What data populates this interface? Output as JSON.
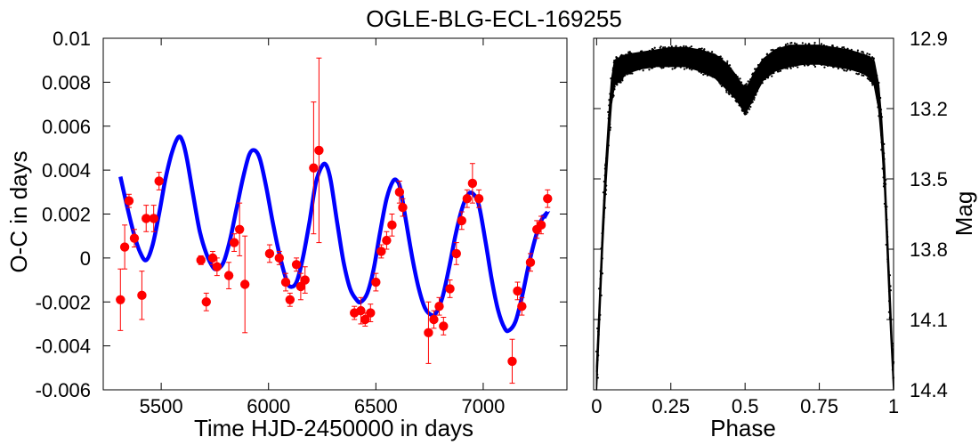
{
  "figure_title": "OGLE-BLG-ECL-169255",
  "chart_data": [
    {
      "type": "scatter",
      "title": "OGLE-BLG-ECL-169255",
      "xlabel": "Time HJD-2450000 in days",
      "ylabel": "O-C in days",
      "xlim": [
        5230,
        7390
      ],
      "ylim": [
        -0.006,
        0.01
      ],
      "xticks": [
        5500,
        6000,
        6500,
        7000
      ],
      "yticks": [
        -0.006,
        -0.004,
        -0.002,
        0,
        0.002,
        0.004,
        0.006,
        0.008,
        0.01
      ],
      "ytick_labels": [
        "-0.006",
        "-0.004",
        "-0.002",
        "0",
        "0.002",
        "0.004",
        "0.006",
        "0.008",
        "0.01"
      ],
      "colors": {
        "points": "#ff0000",
        "errorbars": "#ff0000",
        "model": "#0000ff"
      },
      "series": [
        {
          "name": "O-C measurements",
          "kind": "points-with-errorbars",
          "points": [
            [
              5310,
              -0.0019,
              0.0014
            ],
            [
              5330,
              0.0005,
              0.001
            ],
            [
              5350,
              0.0026,
              0.0003
            ],
            [
              5375,
              0.0009,
              0.0004
            ],
            [
              5410,
              -0.0017,
              0.0011
            ],
            [
              5430,
              0.0018,
              0.0006
            ],
            [
              5465,
              0.0018,
              0.0006
            ],
            [
              5490,
              0.0035,
              0.0004
            ],
            [
              5685,
              -0.0001,
              0.0002
            ],
            [
              5710,
              -0.002,
              0.0004
            ],
            [
              5740,
              0.0,
              0.0003
            ],
            [
              5760,
              -0.0004,
              0.0004
            ],
            [
              5815,
              -0.0008,
              0.0006
            ],
            [
              5840,
              0.0007,
              0.0004
            ],
            [
              5865,
              0.0013,
              0.0012
            ],
            [
              5890,
              -0.0012,
              0.0022
            ],
            [
              6005,
              0.0002,
              0.0004
            ],
            [
              6050,
              0.0,
              0.0003
            ],
            [
              6080,
              -0.0011,
              0.0004
            ],
            [
              6100,
              -0.0019,
              0.0003
            ],
            [
              6130,
              -0.0003,
              0.0003
            ],
            [
              6150,
              -0.0013,
              0.0006
            ],
            [
              6170,
              -0.001,
              0.0006
            ],
            [
              6210,
              0.0041,
              0.003
            ],
            [
              6235,
              0.0049,
              0.0042
            ],
            [
              6400,
              -0.0025,
              0.0003
            ],
            [
              6430,
              -0.0024,
              0.0006
            ],
            [
              6450,
              -0.0028,
              0.0003
            ],
            [
              6475,
              -0.0025,
              0.0004
            ],
            [
              6500,
              -0.0011,
              0.0004
            ],
            [
              6525,
              0.0003,
              0.0003
            ],
            [
              6550,
              0.0008,
              0.0004
            ],
            [
              6575,
              0.0015,
              0.0005
            ],
            [
              6610,
              0.003,
              0.0005
            ],
            [
              6625,
              0.0023,
              0.0004
            ],
            [
              6745,
              -0.0034,
              0.0014
            ],
            [
              6770,
              -0.0028,
              0.0004
            ],
            [
              6795,
              -0.0022,
              0.0004
            ],
            [
              6815,
              -0.0031,
              0.0004
            ],
            [
              6845,
              -0.0014,
              0.0004
            ],
            [
              6875,
              0.0002,
              0.0005
            ],
            [
              6900,
              0.0017,
              0.0004
            ],
            [
              6925,
              0.0027,
              0.0004
            ],
            [
              6950,
              0.0034,
              0.0009
            ],
            [
              6980,
              0.0027,
              0.0004
            ],
            [
              7135,
              -0.0047,
              0.001
            ],
            [
              7160,
              -0.0015,
              0.0004
            ],
            [
              7180,
              -0.0022,
              0.0004
            ],
            [
              7220,
              -0.0002,
              0.0004
            ],
            [
              7250,
              0.0013,
              0.0004
            ],
            [
              7270,
              0.0015,
              0.0004
            ],
            [
              7300,
              0.0027,
              0.0004
            ]
          ]
        },
        {
          "name": "Light-time effect model",
          "kind": "line",
          "x": [
            5310,
            5340,
            5370,
            5400,
            5430,
            5460,
            5490,
            5520,
            5550,
            5580,
            5600,
            5620,
            5650,
            5680,
            5710,
            5740,
            5760,
            5790,
            5820,
            5850,
            5880,
            5910,
            5935,
            5960,
            5990,
            6020,
            6050,
            6080,
            6100,
            6130,
            6160,
            6190,
            6220,
            6250,
            6270,
            6290,
            6320,
            6350,
            6380,
            6410,
            6430,
            6460,
            6490,
            6520,
            6550,
            6580,
            6600,
            6615,
            6640,
            6670,
            6700,
            6730,
            6760,
            6780,
            6810,
            6840,
            6870,
            6900,
            6930,
            6955,
            6980,
            7010,
            7040,
            7070,
            7100,
            7120,
            7150,
            7180,
            7210,
            7240,
            7270,
            7300
          ],
          "y": [
            0.0037,
            0.0024,
            0.0012,
            0.0003,
            -0.0001,
            0.0006,
            0.002,
            0.0036,
            0.0048,
            0.0055,
            0.0053,
            0.0045,
            0.0028,
            0.0012,
            0.0002,
            -0.0004,
            -0.0005,
            -0.0002,
            0.0008,
            0.0022,
            0.0036,
            0.0047,
            0.0049,
            0.0045,
            0.0032,
            0.0016,
            0.0002,
            -0.0009,
            -0.0013,
            -0.0011,
            0.0,
            0.0016,
            0.0034,
            0.0042,
            0.0042,
            0.0035,
            0.0016,
            -0.0002,
            -0.0014,
            -0.0019,
            -0.002,
            -0.0016,
            -0.0005,
            0.0012,
            0.0027,
            0.0035,
            0.0035,
            0.0031,
            0.0017,
            0.0,
            -0.0014,
            -0.0023,
            -0.0026,
            -0.0025,
            -0.0018,
            -0.0005,
            0.001,
            0.0022,
            0.0029,
            0.0029,
            0.0024,
            0.0008,
            -0.001,
            -0.0024,
            -0.0032,
            -0.0033,
            -0.0029,
            -0.0018,
            -0.0004,
            0.0008,
            0.0017,
            0.0021
          ]
        }
      ]
    },
    {
      "type": "scatter",
      "title": "",
      "xlabel": "Phase",
      "ylabel": "Mag",
      "xlim": [
        -0.01,
        1.0
      ],
      "ylim": [
        12.9,
        14.4
      ],
      "y_inverted": true,
      "yaxis_side": "right",
      "xticks": [
        0,
        0.25,
        0.5,
        0.75,
        1
      ],
      "xtick_labels": [
        "0",
        "0.25",
        "0.5",
        "0.75",
        "1"
      ],
      "yticks": [
        12.9,
        13.2,
        13.5,
        13.8,
        14.1,
        14.4
      ],
      "ytick_labels": [
        "12.9",
        "13.2",
        "13.5",
        "13.8",
        "14.1",
        "14.4"
      ],
      "colors": {
        "points": "#000000"
      },
      "series": [
        {
          "name": "Phased light curve upper envelope",
          "kind": "band-edge",
          "phase": [
            0.0,
            0.01,
            0.02,
            0.03,
            0.04,
            0.05,
            0.06,
            0.08,
            0.1,
            0.15,
            0.2,
            0.25,
            0.3,
            0.35,
            0.4,
            0.44,
            0.47,
            0.49,
            0.5,
            0.51,
            0.53,
            0.56,
            0.6,
            0.65,
            0.7,
            0.75,
            0.8,
            0.85,
            0.9,
            0.92,
            0.935,
            0.95,
            0.96,
            0.97,
            0.98,
            0.99,
            1.0
          ],
          "mag": [
            14.3,
            14.0,
            13.7,
            13.45,
            13.25,
            13.08,
            13.0,
            12.98,
            12.97,
            12.96,
            12.95,
            12.94,
            12.94,
            12.95,
            12.97,
            13.01,
            13.06,
            13.1,
            13.11,
            13.1,
            13.05,
            12.99,
            12.95,
            12.93,
            12.93,
            12.93,
            12.94,
            12.95,
            12.97,
            12.98,
            13.0,
            13.1,
            13.25,
            13.45,
            13.75,
            14.05,
            14.35
          ]
        },
        {
          "name": "Phased light curve lower envelope",
          "kind": "band-edge",
          "phase": [
            0.0,
            0.01,
            0.02,
            0.03,
            0.04,
            0.05,
            0.06,
            0.08,
            0.1,
            0.15,
            0.2,
            0.25,
            0.3,
            0.35,
            0.4,
            0.44,
            0.47,
            0.49,
            0.5,
            0.51,
            0.53,
            0.56,
            0.6,
            0.65,
            0.7,
            0.75,
            0.8,
            0.85,
            0.9,
            0.92,
            0.935,
            0.95,
            0.96,
            0.97,
            0.98,
            0.99,
            1.0
          ],
          "mag": [
            14.4,
            14.1,
            13.8,
            13.55,
            13.35,
            13.18,
            13.1,
            13.08,
            13.05,
            13.03,
            13.02,
            13.02,
            13.02,
            13.04,
            13.07,
            13.12,
            13.16,
            13.2,
            13.22,
            13.2,
            13.15,
            13.08,
            13.04,
            13.02,
            13.01,
            13.01,
            13.02,
            13.03,
            13.05,
            13.07,
            13.1,
            13.2,
            13.35,
            13.55,
            13.85,
            14.15,
            14.4
          ]
        }
      ]
    }
  ]
}
